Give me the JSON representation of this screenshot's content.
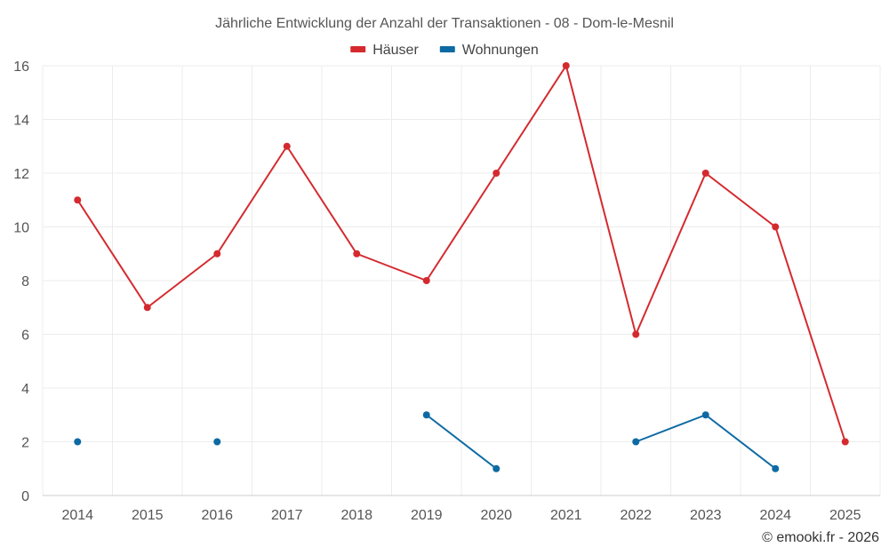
{
  "chart_data": {
    "type": "line",
    "title": "Jährliche Entwicklung der Anzahl der Transaktionen - 08 - Dom-le-Mesnil",
    "xlabel": "",
    "ylabel": "",
    "categories": [
      "2014",
      "2015",
      "2016",
      "2017",
      "2018",
      "2019",
      "2020",
      "2021",
      "2022",
      "2023",
      "2024",
      "2025"
    ],
    "ylim": [
      0,
      16
    ],
    "yticks": [
      0,
      2,
      4,
      6,
      8,
      10,
      12,
      14,
      16
    ],
    "grid": true,
    "legend_position": "top-center",
    "series": [
      {
        "name": "Häuser",
        "color": "#d42a2f",
        "values": [
          11,
          7,
          9,
          13,
          9,
          8,
          12,
          16,
          6,
          12,
          10,
          2
        ]
      },
      {
        "name": "Wohnungen",
        "color": "#0d6aa3",
        "values": [
          2,
          null,
          2,
          null,
          null,
          3,
          1,
          null,
          2,
          3,
          1,
          null
        ]
      }
    ]
  },
  "credit": "© emooki.fr - 2026"
}
